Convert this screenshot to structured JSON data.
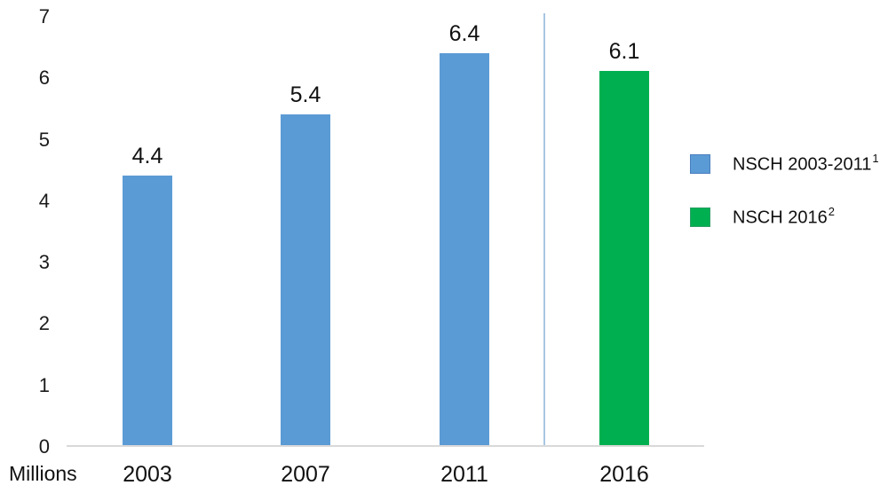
{
  "chart_data": {
    "type": "bar",
    "title": "",
    "xlabel": "",
    "ylabel": "Millions",
    "ylim": [
      0,
      7
    ],
    "yticks": [
      "0",
      "1",
      "2",
      "3",
      "4",
      "5",
      "6",
      "7"
    ],
    "categories": [
      "2003",
      "2007",
      "2011",
      "2016"
    ],
    "values": [
      4.4,
      5.4,
      6.4,
      6.1
    ],
    "data_labels": [
      "4.4",
      "5.4",
      "6.4",
      "6.1"
    ],
    "bar_series_index": [
      0,
      0,
      0,
      1
    ],
    "series": [
      {
        "name": "NSCH 2003-2011",
        "footnote_superscript": "1",
        "color": "#5b9bd5",
        "swatch_border": "#4a7ebf",
        "categories": [
          "2003",
          "2007",
          "2011"
        ],
        "values": [
          4.4,
          5.4,
          6.4
        ]
      },
      {
        "name": "NSCH 2016",
        "footnote_superscript": "2",
        "color": "#00b050",
        "swatch_border": "#2f9e68",
        "categories": [
          "2016"
        ],
        "values": [
          6.1
        ]
      }
    ],
    "separator": {
      "between": [
        "2011",
        "2016"
      ],
      "color": "#a8c6e2"
    },
    "axis_color": "#d9d9d9",
    "grid": false,
    "legend_position": "right"
  }
}
